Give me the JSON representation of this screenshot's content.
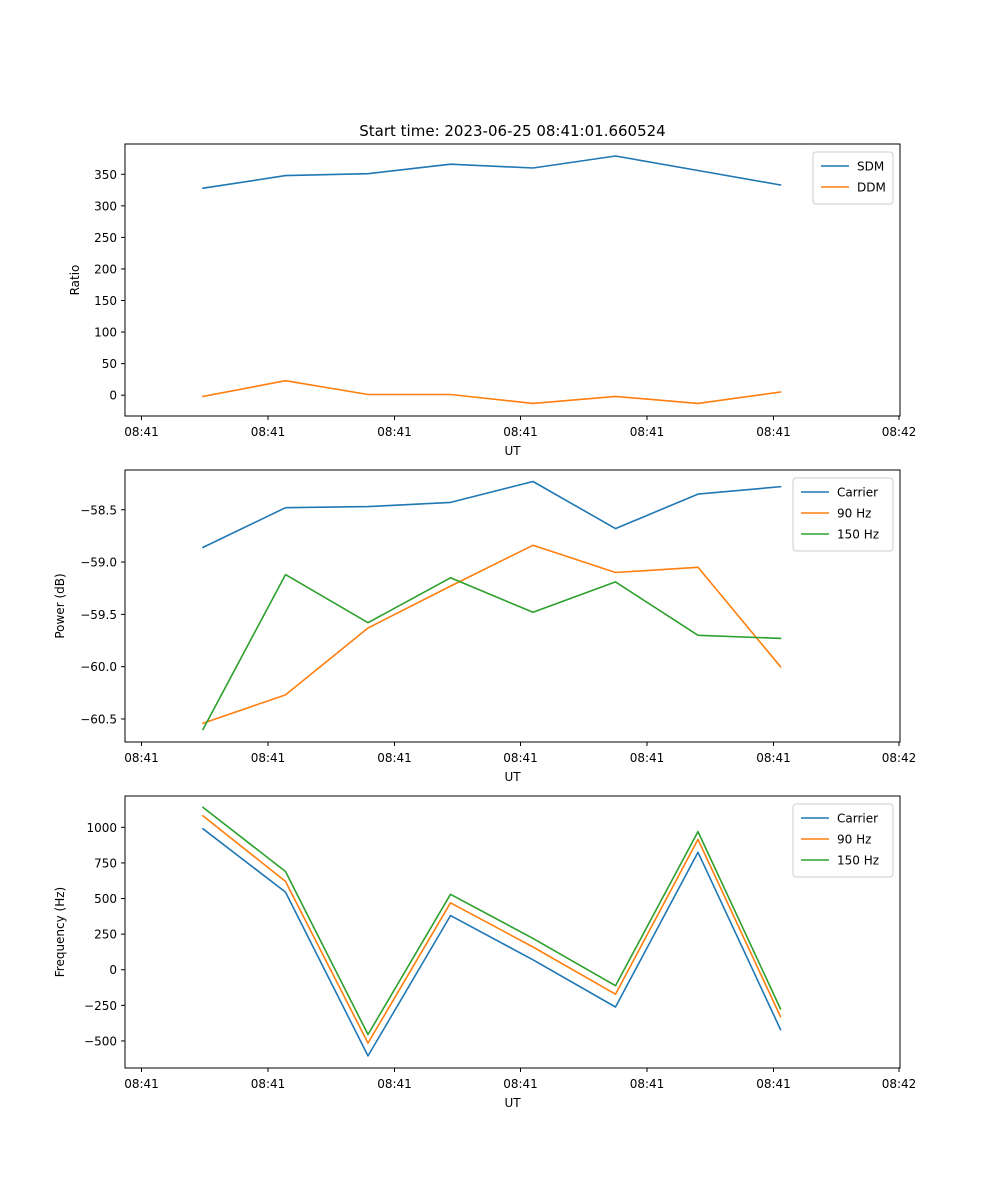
{
  "title": "Start time: 2023-06-25 08:41:01.660524",
  "chart_data": [
    {
      "type": "line",
      "xlabel": "UT",
      "ylabel": "Ratio",
      "x_tick_labels": [
        "08:41",
        "08:41",
        "08:41",
        "08:41",
        "08:41",
        "08:41",
        "08:42"
      ],
      "yticks": [
        0,
        50,
        100,
        150,
        200,
        250,
        300,
        350
      ],
      "ylim": [
        -33,
        398
      ],
      "legend": "top-right",
      "series": [
        {
          "name": "SDM",
          "color": "#1f77b4",
          "values": [
            328,
            348,
            351,
            366,
            360,
            379,
            356,
            333
          ]
        },
        {
          "name": "DDM",
          "color": "#ff7f0e",
          "values": [
            -2,
            23,
            1,
            1,
            -13,
            -2,
            -13,
            5
          ]
        }
      ]
    },
    {
      "type": "line",
      "xlabel": "UT",
      "ylabel": "Power (dB)",
      "x_tick_labels": [
        "08:41",
        "08:41",
        "08:41",
        "08:41",
        "08:41",
        "08:41",
        "08:42"
      ],
      "yticks": [
        -60.5,
        -60.0,
        -59.5,
        -59.0,
        -58.5
      ],
      "ytick_labels": [
        "−60.5",
        "−60.0",
        "−59.5",
        "−59.0",
        "−58.5"
      ],
      "ylim": [
        -60.72,
        -58.12
      ],
      "legend": "top-right",
      "series": [
        {
          "name": "Carrier",
          "color": "#1f77b4",
          "values": [
            -58.86,
            -58.48,
            -58.47,
            -58.43,
            -58.23,
            -58.68,
            -58.35,
            -58.28
          ]
        },
        {
          "name": "90 Hz",
          "color": "#ff7f0e",
          "values": [
            -60.54,
            -60.27,
            -59.63,
            -59.23,
            -58.84,
            -59.1,
            -59.05,
            -60.0
          ]
        },
        {
          "name": "150 Hz",
          "color": "#2ca02c",
          "values": [
            -60.6,
            -59.12,
            -59.58,
            -59.15,
            -59.48,
            -59.19,
            -59.7,
            -59.73
          ]
        }
      ]
    },
    {
      "type": "line",
      "xlabel": "UT",
      "ylabel": "Frequency (Hz)",
      "x_tick_labels": [
        "08:41",
        "08:41",
        "08:41",
        "08:41",
        "08:41",
        "08:41",
        "08:42"
      ],
      "yticks": [
        -500,
        -250,
        0,
        250,
        500,
        750,
        1000
      ],
      "ytick_labels": [
        "−500",
        "−250",
        "0",
        "250",
        "500",
        "750",
        "1000"
      ],
      "ylim": [
        -690,
        1220
      ],
      "legend": "top-right",
      "series": [
        {
          "name": "Carrier",
          "color": "#1f77b4",
          "values": [
            990,
            545,
            -605,
            380,
            70,
            -262,
            825,
            -420
          ]
        },
        {
          "name": "90 Hz",
          "color": "#ff7f0e",
          "values": [
            1080,
            620,
            -515,
            470,
            160,
            -172,
            915,
            -330
          ]
        },
        {
          "name": "150 Hz",
          "color": "#2ca02c",
          "values": [
            1140,
            690,
            -455,
            530,
            220,
            -112,
            970,
            -275
          ]
        }
      ]
    }
  ]
}
